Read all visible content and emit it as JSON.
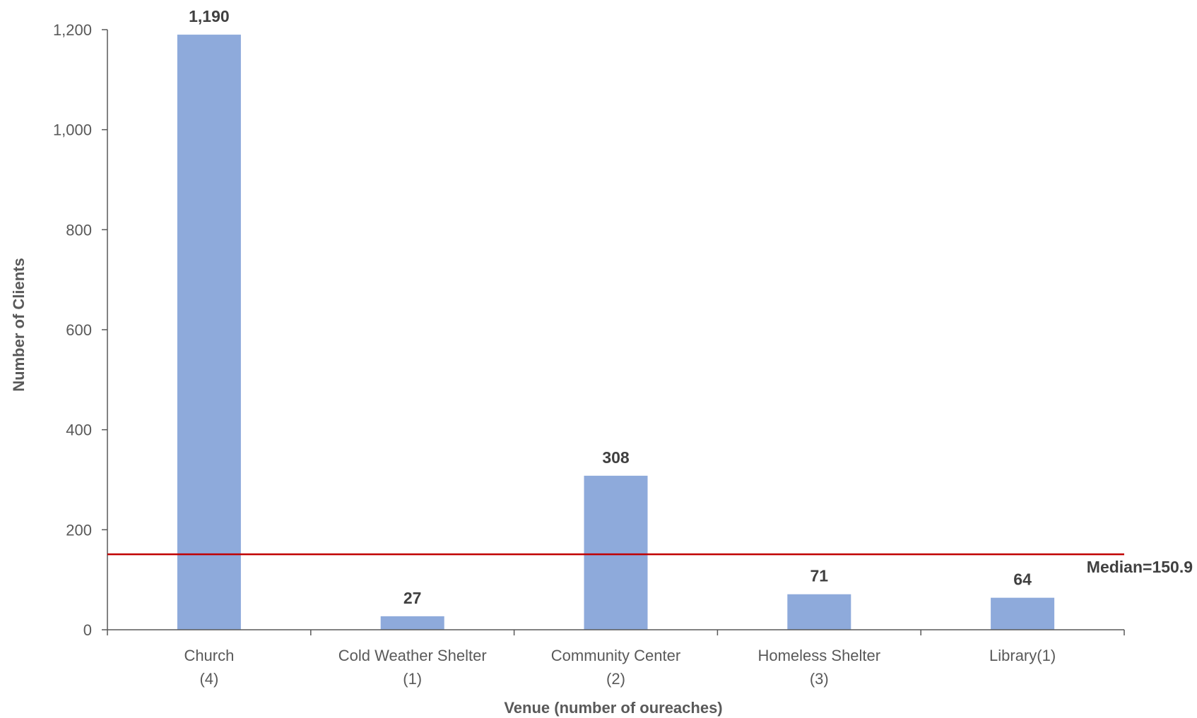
{
  "chart_data": {
    "type": "bar",
    "categories": [
      [
        "Church",
        "(4)"
      ],
      [
        "Cold Weather Shelter",
        "(1)"
      ],
      [
        "Community Center",
        "(2)"
      ],
      [
        "Homeless Shelter",
        "(3)"
      ],
      [
        "Library(1)"
      ]
    ],
    "values": [
      1190,
      27,
      308,
      71,
      64
    ],
    "value_labels": [
      "1,190",
      "27",
      "308",
      "71",
      "64"
    ],
    "xlabel": "Venue (number of oureaches)",
    "ylabel": "Number of Clients",
    "ylim": [
      0,
      1200
    ],
    "yticks": [
      0,
      200,
      400,
      600,
      800,
      1000,
      1200
    ],
    "ytick_labels": [
      "0",
      "200",
      "400",
      "600",
      "800",
      "1,000",
      "1,200"
    ],
    "reference_line": {
      "value": 150.9,
      "label": "Median=150.9",
      "color": "#c00000"
    },
    "bar_color": "#8eaadb",
    "axis_color": "#595959",
    "grid": false,
    "legend": "none"
  }
}
